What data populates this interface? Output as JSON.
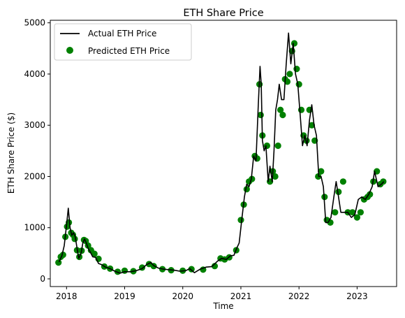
{
  "chart_data": {
    "type": "line",
    "title": "ETH Share Price",
    "xlabel": "Time",
    "ylabel": "ETH Share Price ($)",
    "xlim": [
      2017.72,
      2023.68
    ],
    "ylim": [
      -150,
      5050
    ],
    "x_ticks": [
      2018,
      2019,
      2020,
      2021,
      2022,
      2023
    ],
    "x_tick_labels": [
      "2018",
      "2019",
      "2020",
      "2021",
      "2022",
      "2023"
    ],
    "y_ticks": [
      0,
      1000,
      2000,
      3000,
      4000,
      5000
    ],
    "y_tick_labels": [
      "0",
      "1000",
      "2000",
      "3000",
      "4000",
      "5000"
    ],
    "legend_position": "top-left",
    "series": [
      {
        "name": "Actual ETH Price",
        "style": "line",
        "color": "#000000",
        "x": [
          2017.87,
          2017.92,
          2017.96,
          2018.0,
          2018.03,
          2018.06,
          2018.09,
          2018.12,
          2018.15,
          2018.18,
          2018.21,
          2018.25,
          2018.28,
          2018.31,
          2018.34,
          2018.37,
          2018.41,
          2018.45,
          2018.5,
          2018.55,
          2018.6,
          2018.67,
          2018.75,
          2018.83,
          2018.92,
          2019.0,
          2019.1,
          2019.2,
          2019.3,
          2019.38,
          2019.45,
          2019.5,
          2019.58,
          2019.67,
          2019.75,
          2019.85,
          2019.95,
          2020.05,
          2020.12,
          2020.2,
          2020.3,
          2020.4,
          2020.5,
          2020.6,
          2020.67,
          2020.75,
          2020.82,
          2020.88,
          2020.93,
          2020.97,
          2021.02,
          2021.06,
          2021.1,
          2021.14,
          2021.18,
          2021.22,
          2021.26,
          2021.3,
          2021.33,
          2021.35,
          2021.37,
          2021.4,
          2021.43,
          2021.47,
          2021.5,
          2021.54,
          2021.57,
          2021.6,
          2021.63,
          2021.66,
          2021.7,
          2021.74,
          2021.78,
          2021.82,
          2021.86,
          2021.9,
          2021.94,
          2021.98,
          2022.02,
          2022.06,
          2022.1,
          2022.14,
          2022.18,
          2022.22,
          2022.26,
          2022.3,
          2022.34,
          2022.38,
          2022.42,
          2022.46,
          2022.5,
          2022.55,
          2022.6,
          2022.64,
          2022.68,
          2022.72,
          2022.78,
          2022.84,
          2022.9,
          2022.96,
          2023.02,
          2023.08,
          2023.14,
          2023.2,
          2023.26,
          2023.3,
          2023.36,
          2023.42,
          2023.46
        ],
        "y": [
          330,
          450,
          650,
          1050,
          1380,
          1000,
          850,
          900,
          820,
          600,
          400,
          500,
          700,
          780,
          700,
          600,
          520,
          430,
          420,
          300,
          280,
          230,
          200,
          150,
          110,
          140,
          140,
          160,
          200,
          280,
          320,
          260,
          210,
          190,
          180,
          170,
          150,
          160,
          200,
          120,
          190,
          230,
          240,
          350,
          400,
          380,
          450,
          460,
          600,
          700,
          1200,
          1600,
          1850,
          1800,
          1950,
          2400,
          2300,
          3400,
          4150,
          3800,
          2700,
          2500,
          2600,
          1900,
          2200,
          1900,
          2500,
          3300,
          3500,
          3800,
          3500,
          3500,
          4200,
          4800,
          4200,
          4600,
          4000,
          3800,
          3200,
          2600,
          2800,
          2600,
          3100,
          3400,
          3000,
          2800,
          2000,
          2000,
          1800,
          1100,
          1100,
          1200,
          1600,
          1900,
          1600,
          1300,
          1300,
          1300,
          1200,
          1250,
          1550,
          1600,
          1550,
          1650,
          1800,
          2100,
          1800,
          1850,
          1900
        ]
      },
      {
        "name": "Predicted ETH Price",
        "style": "scatter",
        "color": "#008000",
        "x": [
          2017.86,
          2017.9,
          2017.94,
          2017.98,
          2018.01,
          2018.04,
          2018.08,
          2018.11,
          2018.14,
          2018.18,
          2018.22,
          2018.26,
          2018.3,
          2018.33,
          2018.37,
          2018.42,
          2018.48,
          2018.55,
          2018.65,
          2018.75,
          2018.88,
          2019.0,
          2019.15,
          2019.3,
          2019.42,
          2019.5,
          2019.65,
          2019.8,
          2020.0,
          2020.15,
          2020.35,
          2020.55,
          2020.65,
          2020.72,
          2020.8,
          2020.92,
          2021.0,
          2021.05,
          2021.1,
          2021.14,
          2021.19,
          2021.24,
          2021.28,
          2021.32,
          2021.34,
          2021.37,
          2021.45,
          2021.5,
          2021.55,
          2021.59,
          2021.64,
          2021.68,
          2021.72,
          2021.76,
          2021.8,
          2021.84,
          2021.88,
          2021.92,
          2021.96,
          2022.0,
          2022.04,
          2022.08,
          2022.13,
          2022.18,
          2022.22,
          2022.27,
          2022.33,
          2022.38,
          2022.44,
          2022.48,
          2022.54,
          2022.62,
          2022.68,
          2022.76,
          2022.84,
          2022.92,
          2023.0,
          2023.06,
          2023.12,
          2023.18,
          2023.22,
          2023.28,
          2023.34,
          2023.4,
          2023.45
        ],
        "y": [
          320,
          430,
          470,
          820,
          1020,
          1100,
          900,
          860,
          780,
          560,
          430,
          550,
          760,
          740,
          650,
          560,
          490,
          390,
          240,
          200,
          140,
          160,
          150,
          220,
          290,
          250,
          190,
          170,
          160,
          190,
          180,
          250,
          400,
          380,
          420,
          560,
          1150,
          1450,
          1750,
          1900,
          1950,
          2400,
          2350,
          3800,
          3200,
          2800,
          2600,
          1900,
          2100,
          2000,
          2600,
          3300,
          3200,
          3900,
          3850,
          4000,
          4450,
          4600,
          4100,
          3800,
          3300,
          2800,
          2700,
          3300,
          3000,
          2700,
          2000,
          2100,
          1600,
          1150,
          1100,
          1300,
          1700,
          1900,
          1300,
          1300,
          1200,
          1300,
          1550,
          1600,
          1650,
          1900,
          2100,
          1850,
          1900
        ]
      }
    ]
  }
}
